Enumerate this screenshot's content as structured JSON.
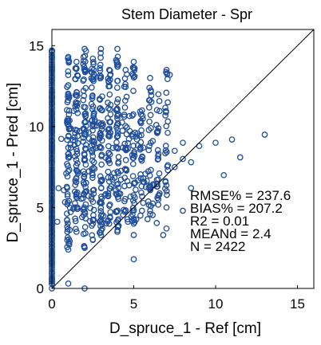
{
  "chart_data": {
    "type": "scatter",
    "title": "Stem Diameter - Spr",
    "xlabel": "D_spruce_1 - Ref [cm]",
    "ylabel": "D_spruce_1 - Pred [cm]",
    "xlim": [
      0,
      16
    ],
    "ylim": [
      0,
      16
    ],
    "xticks": [
      "0",
      "5",
      "10",
      "15"
    ],
    "yticks": [
      "0",
      "5",
      "10",
      "15"
    ],
    "grid": false,
    "reference_line": "1:1",
    "marker": "open-circle",
    "marker_color": "#1f4e9c",
    "stats": [
      "RMSE% = 237.6",
      "BIAS% = 207.2",
      "R2 = 0.01",
      "MEANd = 2.4",
      "N = 2422"
    ],
    "columns": [
      {
        "x": 0,
        "ymin": 0.3,
        "ymax": 14.7
      },
      {
        "x": 1,
        "ymin": 2.4,
        "ymax": 14.3
      },
      {
        "x": 1.5,
        "ymin": 3.5,
        "ymax": 14.0
      },
      {
        "x": 2,
        "ymin": 2.5,
        "ymax": 14.8
      },
      {
        "x": 2.5,
        "ymin": 3.0,
        "ymax": 14.2
      },
      {
        "x": 3,
        "ymin": 3.3,
        "ymax": 14.8
      },
      {
        "x": 3.5,
        "ymin": 4.0,
        "ymax": 13.5
      },
      {
        "x": 4,
        "ymin": 3.5,
        "ymax": 14.8
      },
      {
        "x": 4.5,
        "ymin": 4.8,
        "ymax": 13.5
      },
      {
        "x": 5,
        "ymin": 4.0,
        "ymax": 14.0
      },
      {
        "x": 5.5,
        "ymin": 4.8,
        "ymax": 11.0
      },
      {
        "x": 6,
        "ymin": 4.8,
        "ymax": 13.0
      },
      {
        "x": 6.5,
        "ymin": 5.5,
        "ymax": 12.0
      },
      {
        "x": 7,
        "ymin": 5.0,
        "ymax": 13.5
      }
    ],
    "points": [
      {
        "x": 0,
        "y": 0.0
      },
      {
        "x": 0,
        "y": 0.5
      },
      {
        "x": 2,
        "y": 0.0
      },
      {
        "x": 5,
        "y": 1.8
      },
      {
        "x": 5,
        "y": 3.3
      },
      {
        "x": 7,
        "y": 3.7
      },
      {
        "x": 7.5,
        "y": 7.5
      },
      {
        "x": 7.5,
        "y": 8.5
      },
      {
        "x": 7.2,
        "y": 13.2
      },
      {
        "x": 8,
        "y": 8.0
      },
      {
        "x": 8,
        "y": 9.0
      },
      {
        "x": 8,
        "y": 4.8
      },
      {
        "x": 8.5,
        "y": 6.2
      },
      {
        "x": 8.5,
        "y": 7.8
      },
      {
        "x": 9,
        "y": 8.8
      },
      {
        "x": 10,
        "y": 9.0
      },
      {
        "x": 11,
        "y": 9.2
      },
      {
        "x": 11.5,
        "y": 8.1
      },
      {
        "x": 10.5,
        "y": 7.0
      },
      {
        "x": 13,
        "y": 9.5
      },
      {
        "x": 1,
        "y": 0.3
      },
      {
        "x": 6,
        "y": 4.6
      },
      {
        "x": 6.8,
        "y": 3.3
      }
    ]
  }
}
